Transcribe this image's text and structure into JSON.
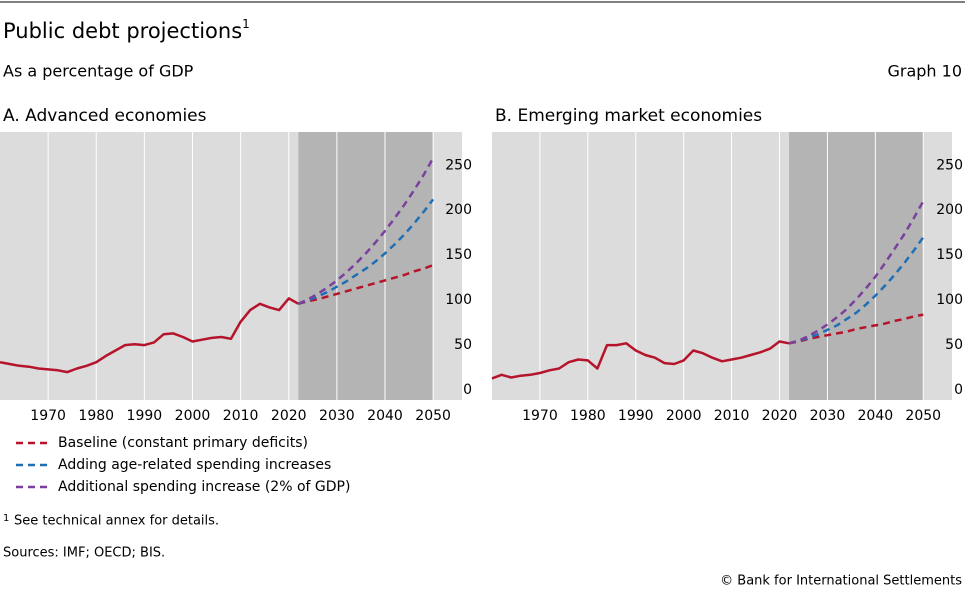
{
  "header": {
    "title": "Public debt projections",
    "title_footnote_mark": "1",
    "subtitle": "As a percentage of GDP",
    "graph_label": "Graph 10"
  },
  "chart_data": [
    {
      "type": "line",
      "title": "A. Advanced economies",
      "x": [
        1960,
        1962,
        1964,
        1966,
        1968,
        1970,
        1972,
        1974,
        1976,
        1978,
        1980,
        1982,
        1984,
        1986,
        1988,
        1990,
        1992,
        1994,
        1996,
        1998,
        2000,
        2002,
        2004,
        2006,
        2008,
        2010,
        2012,
        2014,
        2016,
        2018,
        2020,
        2022,
        2024,
        2026,
        2028,
        2030,
        2032,
        2034,
        2036,
        2038,
        2040,
        2042,
        2044,
        2046,
        2048,
        2050
      ],
      "xlim": [
        1960,
        2056
      ],
      "xticks": [
        1970,
        1980,
        1990,
        2000,
        2010,
        2020,
        2030,
        2040,
        2050
      ],
      "ylim": [
        -11,
        287
      ],
      "yticks": [
        0,
        50,
        100,
        150,
        200,
        250
      ],
      "shade": [
        2022,
        2050
      ],
      "history": {
        "color": "#b5142b",
        "values": [
          31,
          29,
          27,
          26,
          24,
          23,
          22,
          20,
          24,
          27,
          31,
          38,
          44,
          50,
          51,
          50,
          53,
          62,
          63,
          59,
          54,
          56,
          58,
          59,
          57,
          76,
          89,
          96,
          92,
          89,
          102,
          96,
          null,
          null,
          null,
          null,
          null,
          null,
          null,
          null,
          null,
          null,
          null,
          null,
          null,
          null
        ]
      },
      "series": [
        {
          "name": "Baseline (constant primary deficits)",
          "color": "#b5142b",
          "values": [
            null,
            null,
            null,
            null,
            null,
            null,
            null,
            null,
            null,
            null,
            null,
            null,
            null,
            null,
            null,
            null,
            null,
            null,
            null,
            null,
            null,
            null,
            null,
            null,
            null,
            null,
            null,
            null,
            null,
            null,
            null,
            96,
            99,
            101,
            104,
            107,
            110,
            113,
            116,
            119,
            122,
            125,
            128,
            132,
            135,
            139
          ]
        },
        {
          "name": "Adding age-related spending increases",
          "color": "#1f6fb5",
          "values": [
            null,
            null,
            null,
            null,
            null,
            null,
            null,
            null,
            null,
            null,
            null,
            null,
            null,
            null,
            null,
            null,
            null,
            null,
            null,
            null,
            null,
            null,
            null,
            null,
            null,
            null,
            null,
            null,
            null,
            null,
            null,
            96,
            100,
            104,
            109,
            115,
            121,
            128,
            135,
            143,
            152,
            162,
            173,
            185,
            198,
            212
          ]
        },
        {
          "name": "Additional spending increase (2% of GDP)",
          "color": "#7b3f9e",
          "values": [
            null,
            null,
            null,
            null,
            null,
            null,
            null,
            null,
            null,
            null,
            null,
            null,
            null,
            null,
            null,
            null,
            null,
            null,
            null,
            null,
            null,
            null,
            null,
            null,
            null,
            null,
            null,
            null,
            null,
            null,
            null,
            96,
            101,
            107,
            114,
            122,
            131,
            141,
            152,
            164,
            177,
            191,
            206,
            222,
            239,
            258
          ]
        }
      ]
    },
    {
      "type": "line",
      "title": "B. Emerging market economies",
      "x": [
        1960,
        1962,
        1964,
        1966,
        1968,
        1970,
        1972,
        1974,
        1976,
        1978,
        1980,
        1982,
        1984,
        1986,
        1988,
        1990,
        1992,
        1994,
        1996,
        1998,
        2000,
        2002,
        2004,
        2006,
        2008,
        2010,
        2012,
        2014,
        2016,
        2018,
        2020,
        2022,
        2024,
        2026,
        2028,
        2030,
        2032,
        2034,
        2036,
        2038,
        2040,
        2042,
        2044,
        2046,
        2048,
        2050
      ],
      "xlim": [
        1960,
        2056
      ],
      "xticks": [
        1970,
        1980,
        1990,
        2000,
        2010,
        2020,
        2030,
        2040,
        2050
      ],
      "ylim": [
        -11,
        287
      ],
      "yticks": [
        0,
        50,
        100,
        150,
        200,
        250
      ],
      "shade": [
        2022,
        2050
      ],
      "history": {
        "color": "#b5142b",
        "values": [
          13,
          17,
          14,
          16,
          17,
          19,
          22,
          24,
          31,
          34,
          33,
          24,
          50,
          50,
          52,
          44,
          39,
          36,
          30,
          29,
          33,
          44,
          41,
          36,
          32,
          34,
          36,
          39,
          42,
          46,
          54,
          52,
          null,
          null,
          null,
          null,
          null,
          null,
          null,
          null,
          null,
          null,
          null,
          null,
          null,
          null
        ]
      },
      "series": [
        {
          "color": "#b5142b",
          "values": [
            null,
            null,
            null,
            null,
            null,
            null,
            null,
            null,
            null,
            null,
            null,
            null,
            null,
            null,
            null,
            null,
            null,
            null,
            null,
            null,
            null,
            null,
            null,
            null,
            null,
            null,
            null,
            null,
            null,
            null,
            null,
            52,
            54,
            57,
            59,
            61,
            63,
            65,
            68,
            70,
            72,
            74,
            77,
            79,
            82,
            84
          ]
        },
        {
          "color": "#1f6fb5",
          "values": [
            null,
            null,
            null,
            null,
            null,
            null,
            null,
            null,
            null,
            null,
            null,
            null,
            null,
            null,
            null,
            null,
            null,
            null,
            null,
            null,
            null,
            null,
            null,
            null,
            null,
            null,
            null,
            null,
            null,
            null,
            null,
            52,
            55,
            58,
            62,
            67,
            72,
            79,
            86,
            95,
            105,
            116,
            128,
            141,
            155,
            170
          ]
        },
        {
          "color": "#7b3f9e",
          "values": [
            null,
            null,
            null,
            null,
            null,
            null,
            null,
            null,
            null,
            null,
            null,
            null,
            null,
            null,
            null,
            null,
            null,
            null,
            null,
            null,
            null,
            null,
            null,
            null,
            null,
            null,
            null,
            null,
            null,
            null,
            null,
            52,
            55,
            60,
            66,
            73,
            81,
            90,
            101,
            113,
            126,
            141,
            157,
            173,
            191,
            210
          ]
        }
      ]
    }
  ],
  "footer": {
    "footnote_mark": "1",
    "footnote": "See technical annex for details.",
    "sources": "Sources: IMF; OECD; BIS.",
    "copyright": "© Bank for International Settlements"
  }
}
